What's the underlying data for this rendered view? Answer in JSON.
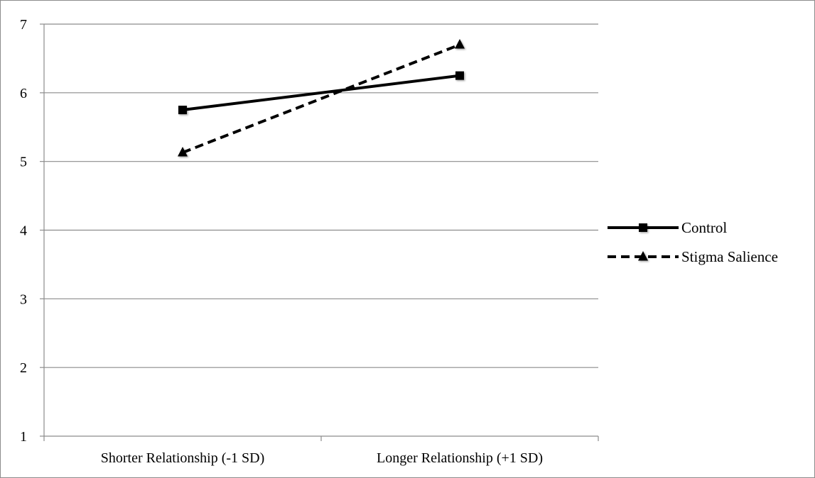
{
  "chart_data": {
    "type": "line",
    "title": "",
    "xlabel": "",
    "ylabel": "",
    "categories": [
      "Shorter Relationship (-1 SD)",
      "Longer Relationship (+1 SD)"
    ],
    "ylim": [
      1,
      7
    ],
    "yticks": [
      1,
      2,
      3,
      4,
      5,
      6,
      7
    ],
    "grid": true,
    "legend_position": "right",
    "series": [
      {
        "name": "Control",
        "values": [
          5.75,
          6.25
        ],
        "line_style": "solid",
        "marker": "square",
        "color": "#000000"
      },
      {
        "name": "Stigma Salience",
        "values": [
          5.13,
          6.7
        ],
        "line_style": "dashed",
        "marker": "triangle",
        "color": "#000000"
      }
    ]
  },
  "colors": {
    "grid": "#8c8c8c",
    "axis": "#8c8c8c",
    "border": "#8c8c8c"
  }
}
